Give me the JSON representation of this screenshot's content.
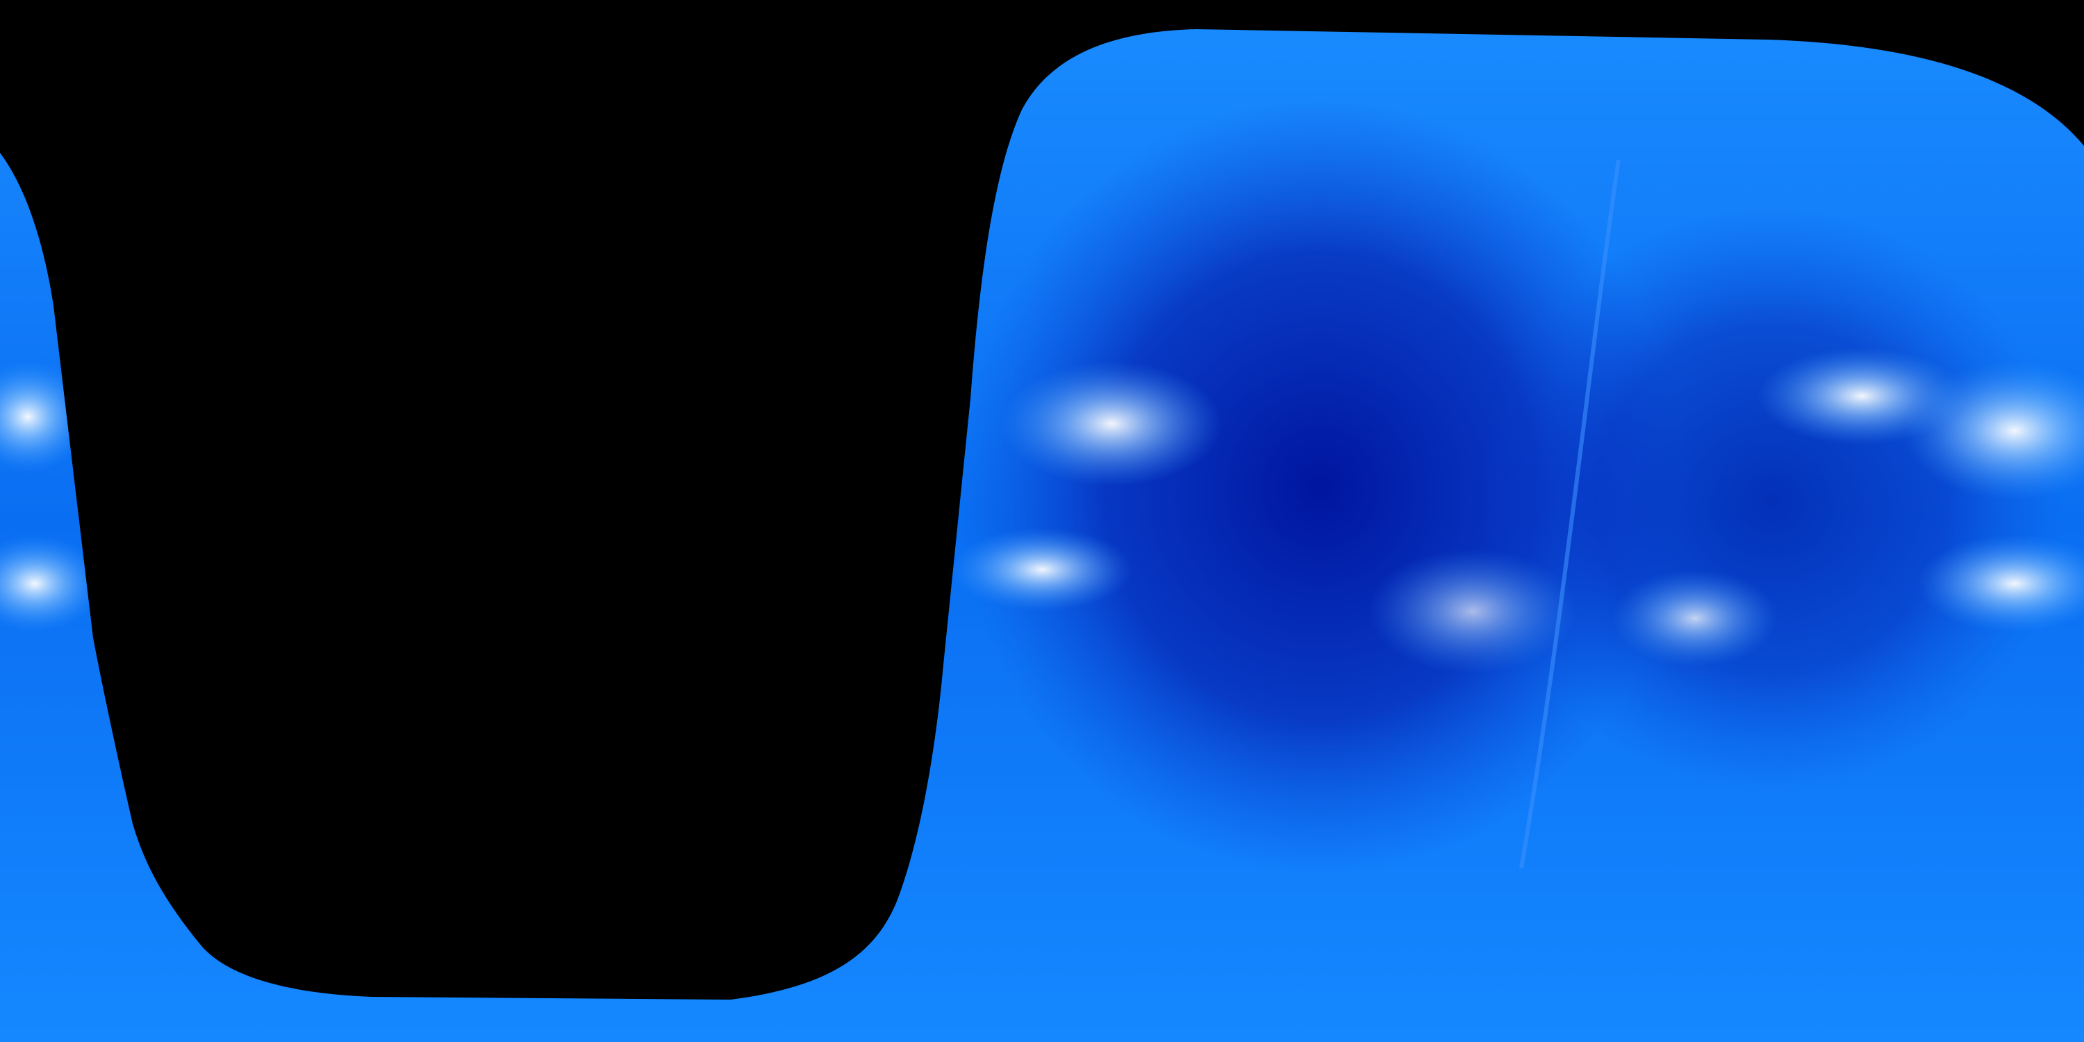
{
  "image": {
    "subject": "solar-synoptic-map",
    "colors": {
      "base_blue": "#0a72f5",
      "dark_blue": "#001a9e",
      "highlight": "#ffffff",
      "mask": "#000000"
    }
  }
}
